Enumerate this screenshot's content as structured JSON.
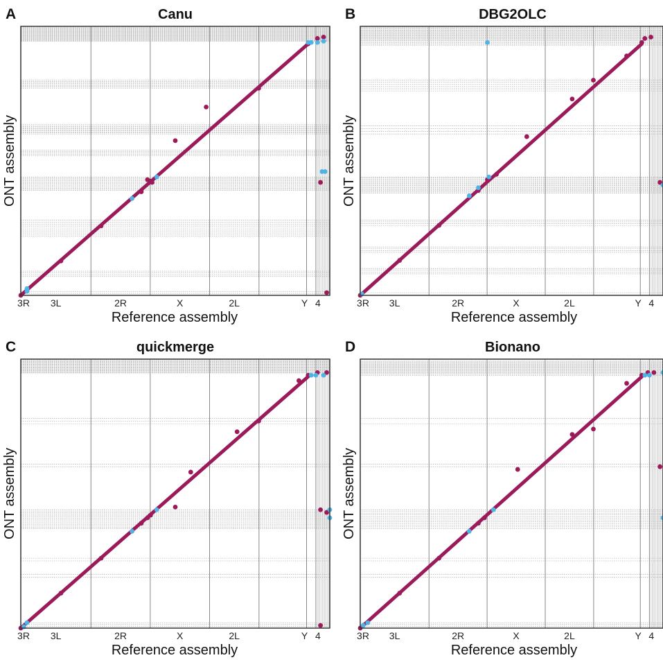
{
  "figure": {
    "xlabel": "Reference assembly",
    "ylabel": "ONT assembly",
    "colors": {
      "forward": "#9b1b5a",
      "reverse": "#4fb3e6",
      "grid": "#8a8a8a",
      "frame": "#333333"
    },
    "chromosomes": [
      "3R",
      "3L",
      "2R",
      "X",
      "2L",
      "Y",
      "4"
    ],
    "chromosome_boundaries_fraction": [
      0.0,
      0.227,
      0.419,
      0.611,
      0.771,
      0.925,
      0.955
    ]
  },
  "chart_data": [
    {
      "letter": "A",
      "type": "scatter",
      "title": "Canu",
      "xlabel": "Reference assembly",
      "ylabel": "ONT assembly",
      "x_tick_labels": [
        "3R",
        "3L",
        "2R",
        "X",
        "2L",
        "Y",
        "4"
      ],
      "xlim": [
        0,
        1
      ],
      "ylim": [
        0,
        1
      ],
      "grid": true,
      "series": [
        {
          "color": "#9b1b5a",
          "points": [
            [
              0.0,
              0.0
            ],
            [
              0.13,
              0.128
            ],
            [
              0.26,
              0.258
            ],
            [
              0.39,
              0.385
            ],
            [
              0.425,
              0.42
            ],
            [
              0.41,
              0.43
            ],
            [
              0.42,
              0.425
            ],
            [
              0.5,
              0.575
            ],
            [
              0.6,
              0.7
            ],
            [
              0.77,
              0.77
            ],
            [
              0.93,
              0.935
            ],
            [
              0.96,
              0.955
            ],
            [
              0.98,
              0.96
            ],
            [
              0.97,
              0.42
            ],
            [
              0.99,
              0.01
            ]
          ]
        },
        {
          "color": "#4fb3e6",
          "points": [
            [
              0.02,
              0.015
            ],
            [
              0.02,
              0.025
            ],
            [
              0.36,
              0.36
            ],
            [
              0.44,
              0.44
            ],
            [
              0.93,
              0.94
            ],
            [
              0.94,
              0.94
            ],
            [
              0.96,
              0.94
            ],
            [
              0.975,
              0.46
            ],
            [
              0.985,
              0.46
            ],
            [
              0.98,
              0.945
            ]
          ]
        }
      ]
    },
    {
      "letter": "B",
      "type": "scatter",
      "title": "DBG2OLC",
      "xlabel": "Reference assembly",
      "ylabel": "ONT assembly",
      "x_tick_labels": [
        "3R",
        "3L",
        "2R",
        "X",
        "2L",
        "Y",
        "4"
      ],
      "xlim": [
        0,
        1
      ],
      "ylim": [
        0,
        1
      ],
      "grid": true,
      "series": [
        {
          "color": "#9b1b5a",
          "points": [
            [
              0.0,
              0.0
            ],
            [
              0.13,
              0.13
            ],
            [
              0.26,
              0.26
            ],
            [
              0.39,
              0.39
            ],
            [
              0.42,
              0.43
            ],
            [
              0.45,
              0.45
            ],
            [
              0.55,
              0.59
            ],
            [
              0.7,
              0.73
            ],
            [
              0.77,
              0.8
            ],
            [
              0.88,
              0.89
            ],
            [
              0.93,
              0.94
            ],
            [
              0.94,
              0.955
            ],
            [
              0.96,
              0.96
            ],
            [
              0.99,
              0.42
            ]
          ]
        },
        {
          "color": "#4fb3e6",
          "points": [
            [
              0.005,
              0.005
            ],
            [
              0.36,
              0.37
            ],
            [
              0.39,
              0.4
            ],
            [
              0.425,
              0.44
            ],
            [
              0.42,
              0.94
            ],
            [
              1.0,
              0.41
            ]
          ]
        }
      ]
    },
    {
      "letter": "C",
      "type": "scatter",
      "title": "quickmerge",
      "xlabel": "Reference assembly",
      "ylabel": "ONT assembly",
      "x_tick_labels": [
        "3R",
        "3L",
        "2R",
        "X",
        "2L",
        "Y",
        "4"
      ],
      "xlim": [
        0,
        1
      ],
      "ylim": [
        0,
        1
      ],
      "grid": true,
      "series": [
        {
          "color": "#9b1b5a",
          "points": [
            [
              0.0,
              0.0
            ],
            [
              0.13,
              0.13
            ],
            [
              0.26,
              0.26
            ],
            [
              0.39,
              0.39
            ],
            [
              0.41,
              0.41
            ],
            [
              0.42,
              0.42
            ],
            [
              0.5,
              0.45
            ],
            [
              0.55,
              0.58
            ],
            [
              0.7,
              0.73
            ],
            [
              0.77,
              0.77
            ],
            [
              0.9,
              0.92
            ],
            [
              0.93,
              0.94
            ],
            [
              0.96,
              0.95
            ],
            [
              0.97,
              0.44
            ],
            [
              0.99,
              0.43
            ],
            [
              0.99,
              0.95
            ],
            [
              0.97,
              0.01
            ]
          ]
        },
        {
          "color": "#4fb3e6",
          "points": [
            [
              0.01,
              0.005
            ],
            [
              0.02,
              0.02
            ],
            [
              0.36,
              0.36
            ],
            [
              0.44,
              0.44
            ],
            [
              0.94,
              0.94
            ],
            [
              0.955,
              0.94
            ],
            [
              0.98,
              0.94
            ],
            [
              1.0,
              0.44
            ],
            [
              1.0,
              0.41
            ]
          ]
        }
      ]
    },
    {
      "letter": "D",
      "type": "scatter",
      "title": "Bionano",
      "xlabel": "Reference assembly",
      "ylabel": "ONT assembly",
      "x_tick_labels": [
        "3R",
        "3L",
        "2R",
        "X",
        "2L",
        "Y",
        "4"
      ],
      "xlim": [
        0,
        1
      ],
      "ylim": [
        0,
        1
      ],
      "grid": true,
      "series": [
        {
          "color": "#9b1b5a",
          "points": [
            [
              0.0,
              0.0
            ],
            [
              0.13,
              0.13
            ],
            [
              0.26,
              0.26
            ],
            [
              0.39,
              0.39
            ],
            [
              0.41,
              0.41
            ],
            [
              0.52,
              0.59
            ],
            [
              0.7,
              0.72
            ],
            [
              0.77,
              0.74
            ],
            [
              0.88,
              0.91
            ],
            [
              0.93,
              0.94
            ],
            [
              0.95,
              0.95
            ],
            [
              0.97,
              0.95
            ],
            [
              0.99,
              0.6
            ]
          ]
        },
        {
          "color": "#4fb3e6",
          "points": [
            [
              0.01,
              0.01
            ],
            [
              0.025,
              0.02
            ],
            [
              0.36,
              0.36
            ],
            [
              0.44,
              0.44
            ],
            [
              0.94,
              0.94
            ],
            [
              0.955,
              0.94
            ],
            [
              1.0,
              0.95
            ],
            [
              1.0,
              0.41
            ]
          ]
        }
      ]
    }
  ]
}
